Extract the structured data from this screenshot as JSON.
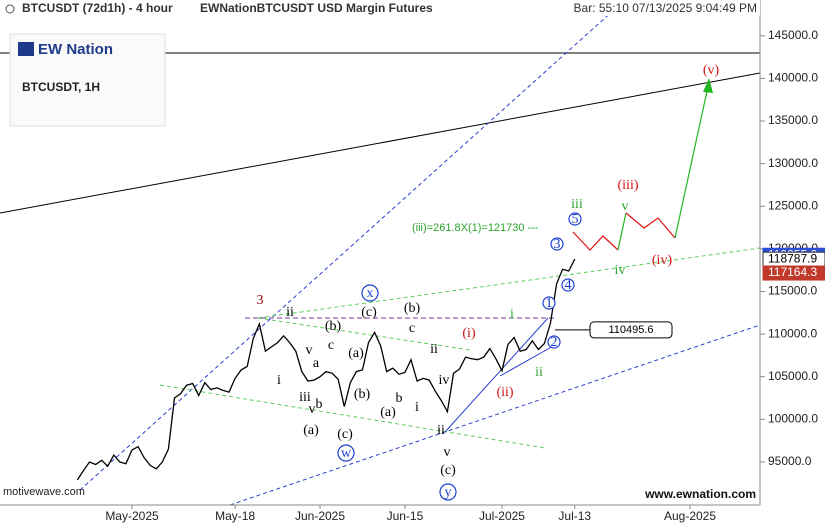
{
  "chart_data": {
    "type": "line",
    "title": "BTCUSDT (72d1h) - 4 hour",
    "subtitle": "EWNationBTCUSDT USD Margin Futures",
    "status": "Bar: 55:10  07/13/2025 9:04:49 PM",
    "logo": "EW Nation",
    "symbol_label": "BTCUSDT, 1H",
    "watermark_left": "motivewave.com",
    "watermark_right": "www.ewnation.com",
    "fib_note": "(iii)=261.8X(1)=121730 ---",
    "categories": [
      null,
      null,
      null,
      null,
      null,
      null,
      null,
      null,
      null,
      "May-2025",
      null,
      null,
      null,
      null,
      null,
      null,
      null,
      null,
      null,
      null,
      null,
      null,
      null,
      null,
      null,
      null,
      "May-18",
      null,
      null,
      null,
      null,
      null,
      null,
      null,
      null,
      null,
      null,
      null,
      null,
      null,
      "Jun-2025",
      null,
      null,
      null,
      null,
      null,
      null,
      null,
      null,
      null,
      null,
      null,
      null,
      null,
      "Jun-15",
      null,
      null,
      null,
      null,
      null,
      null,
      null,
      null,
      null,
      null,
      null,
      null,
      null,
      null,
      null,
      "Jul-2025",
      null,
      null,
      null,
      null,
      null,
      null,
      null,
      null,
      null,
      null,
      null,
      "Jul-13",
      null,
      null,
      null,
      null,
      null,
      null,
      null,
      null,
      null,
      null,
      null,
      null,
      null,
      null,
      null,
      null,
      null,
      null,
      "Aug-2025",
      null,
      null,
      null,
      null,
      null,
      null,
      null,
      null,
      null,
      null,
      null,
      null
    ],
    "series": [
      {
        "name": "BTCUSDT",
        "color": "#000000",
        "values": [
          92900,
          94000,
          95000,
          94700,
          95200,
          94500,
          95800,
          95000,
          94800,
          96400,
          96800,
          95500,
          94600,
          94200,
          95000,
          96500,
          102500,
          103000,
          104000,
          104200,
          102800,
          104300,
          103500,
          103700,
          103400,
          103200,
          104800,
          105800,
          106200,
          109500,
          111200,
          108000,
          108500,
          109000,
          109800,
          109000,
          108000,
          105600,
          104500,
          104600,
          105000,
          105600,
          105400,
          104700,
          101500,
          104300,
          105600,
          105800,
          109000,
          110200,
          108600,
          105600,
          106000,
          105300,
          105500,
          107000,
          104500,
          104800,
          104600,
          103300,
          102200,
          100900,
          105400,
          105900,
          107300,
          107100,
          107000,
          107300,
          108300,
          107100,
          105700,
          108800,
          109600,
          108000,
          108200,
          109200,
          108200,
          108900,
          111300,
          115900,
          117600,
          117400,
          118800,
          null,
          null,
          null,
          null,
          null,
          null,
          null,
          null,
          null,
          null,
          null,
          null,
          null,
          null,
          null,
          null,
          null,
          null,
          null,
          null,
          null,
          null,
          null,
          null,
          null,
          null,
          null,
          null,
          null,
          null,
          null
        ]
      }
    ],
    "ylim": [
      89950,
      149200
    ],
    "yticks": [
      {
        "value": 95000,
        "label": "95000.0"
      },
      {
        "value": 100000,
        "label": "100000.0"
      },
      {
        "value": 105000,
        "label": "105000.0"
      },
      {
        "value": 110000,
        "label": "110000.0"
      },
      {
        "value": 115000,
        "label": "115000.0"
      },
      {
        "value": 120000,
        "label": "120000.0"
      },
      {
        "value": 125000,
        "label": "125000.0"
      },
      {
        "value": 130000,
        "label": "130000.0"
      },
      {
        "value": 135000,
        "label": "135000.0"
      },
      {
        "value": 140000,
        "label": "140000.0"
      },
      {
        "value": 145000,
        "label": "145000.0"
      }
    ],
    "price_tags": [
      {
        "value": 119255,
        "label": "119255.0",
        "color": "#2a4fd6"
      },
      {
        "value": 118787.9,
        "label": "118787.9",
        "color": "#ffffff"
      },
      {
        "value": 117164.3,
        "label": "117164.3",
        "color": "#c0392b"
      }
    ],
    "callout": 110495.6,
    "annotations": [
      {
        "text": "3",
        "color": "#8b0000"
      },
      {
        "text": "ii",
        "color": "#000000"
      },
      {
        "text": "(b)",
        "color": "#000000"
      },
      {
        "text": "x",
        "color": "#1a3fcf",
        "circled": true
      },
      {
        "text": "(c)",
        "color": "#000000"
      },
      {
        "text": "(b)",
        "color": "#000000"
      },
      {
        "text": "c",
        "color": "#000000"
      },
      {
        "text": "(a)",
        "color": "#000000"
      },
      {
        "text": "v",
        "color": "#000000"
      },
      {
        "text": "a",
        "color": "#000000"
      },
      {
        "text": "c",
        "color": "#000000"
      },
      {
        "text": "i",
        "color": "#000000"
      },
      {
        "text": "iii",
        "color": "#000000"
      },
      {
        "text": "b",
        "color": "#000000"
      },
      {
        "text": "v",
        "color": "#000000"
      },
      {
        "text": "(a)",
        "color": "#000000"
      },
      {
        "text": "(c)",
        "color": "#000000"
      },
      {
        "text": "w",
        "color": "#1a3fcf",
        "circled": true
      },
      {
        "text": "(b)",
        "color": "#000000"
      },
      {
        "text": "b",
        "color": "#000000"
      },
      {
        "text": "(a)",
        "color": "#000000"
      },
      {
        "text": "i",
        "color": "#000000"
      },
      {
        "text": "ii",
        "color": "#000000"
      },
      {
        "text": "iv",
        "color": "#000000"
      },
      {
        "text": "ii",
        "color": "#000000"
      },
      {
        "text": "v",
        "color": "#000000"
      },
      {
        "text": "(c)",
        "color": "#000000"
      },
      {
        "text": "y",
        "color": "#1a3fcf",
        "circled": true
      },
      {
        "text": "(i)",
        "color": "#d01010"
      },
      {
        "text": "(ii)",
        "color": "#d01010"
      },
      {
        "text": "i",
        "color": "#2aa52a"
      },
      {
        "text": "ii",
        "color": "#2aa52a"
      },
      {
        "text": "1",
        "color": "#1a3fcf",
        "circled": true
      },
      {
        "text": "2",
        "color": "#1a3fcf",
        "circled": true
      },
      {
        "text": "3",
        "color": "#1a3fcf",
        "circled": true
      },
      {
        "text": "4",
        "color": "#1a3fcf",
        "circled": true
      },
      {
        "text": "5",
        "color": "#1a3fcf",
        "circled": true
      },
      {
        "text": "iii",
        "color": "#2aa52a"
      },
      {
        "text": "v",
        "color": "#2aa52a"
      },
      {
        "text": "iv",
        "color": "#2aa52a"
      },
      {
        "text": "(iii)",
        "color": "#d01010"
      },
      {
        "text": "(iv)",
        "color": "#d01010"
      },
      {
        "text": "(v)",
        "color": "#d01010"
      }
    ]
  }
}
